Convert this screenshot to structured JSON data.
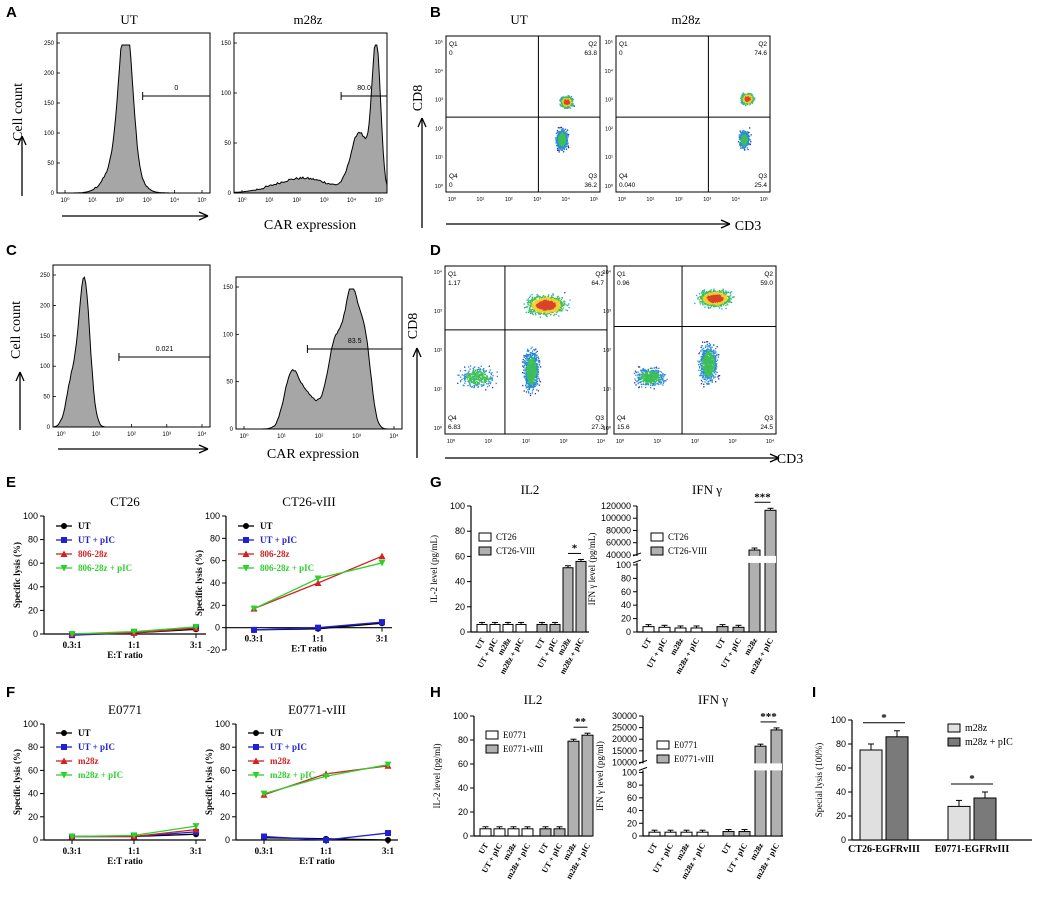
{
  "panels": {
    "A": {
      "letter": "A",
      "ylabel": "Cell count",
      "xlabel": "CAR expression",
      "plots": [
        {
          "title": "UT",
          "gate": "0",
          "yticks": [
            "0",
            "50",
            "100",
            "150",
            "200",
            "250"
          ],
          "xticks": [
            "10⁰",
            "10¹",
            "10²",
            "10³",
            "10⁴",
            "10⁵"
          ]
        },
        {
          "title": "m28z",
          "gate": "80.0",
          "yticks": [
            "0",
            "50",
            "100",
            "150"
          ],
          "xticks": [
            "10⁰",
            "10¹",
            "10²",
            "10³",
            "10⁴",
            "10⁵"
          ]
        }
      ]
    },
    "B": {
      "letter": "B",
      "ylabel": "CD8",
      "xlabel": "CD3",
      "plots": [
        {
          "title": "UT",
          "q1": "Q1",
          "q1v": "0",
          "q2": "Q2",
          "q2v": "63.8",
          "q3": "Q3",
          "q3v": "36.2",
          "q4": "Q4",
          "q4v": "0"
        },
        {
          "title": "m28z",
          "q1": "Q1",
          "q1v": "0",
          "q2": "Q2",
          "q2v": "74.6",
          "q3": "Q3",
          "q3v": "25.4",
          "q4": "Q4",
          "q4v": "0.040"
        }
      ],
      "ticks": [
        "10⁰",
        "10¹",
        "10²",
        "10³",
        "10⁴",
        "10⁵"
      ]
    },
    "C": {
      "letter": "C",
      "ylabel": "Cell count",
      "xlabel": "CAR expression",
      "plots": [
        {
          "gate": "0.021",
          "yticks": [
            "0",
            "50",
            "100",
            "150",
            "200",
            "250"
          ],
          "xticks": [
            "10⁰",
            "10¹",
            "10²",
            "10³",
            "10⁴"
          ]
        },
        {
          "gate": "83.5",
          "yticks": [
            "0",
            "50",
            "100",
            "150"
          ],
          "xticks": [
            "10⁰",
            "10¹",
            "10²",
            "10³",
            "10⁴"
          ]
        }
      ]
    },
    "D": {
      "letter": "D",
      "ylabel": "CD8",
      "xlabel": "CD3",
      "plots": [
        {
          "q1": "Q1",
          "q1v": "1.17",
          "q2": "Q2",
          "q2v": "64.7",
          "q3": "Q3",
          "q3v": "27.3",
          "q4": "Q4",
          "q4v": "6.83"
        },
        {
          "q1": "Q1",
          "q1v": "0.96",
          "q2": "Q2",
          "q2v": "59.0",
          "q3": "Q3",
          "q3v": "24.5",
          "q4": "Q4",
          "q4v": "15.6"
        }
      ],
      "ticks": [
        "10⁰",
        "10¹",
        "10²",
        "10³",
        "10⁴"
      ]
    },
    "E": {
      "letter": "E"
    },
    "F": {
      "letter": "F"
    },
    "G": {
      "letter": "G"
    },
    "H": {
      "letter": "H"
    },
    "I": {
      "letter": "I"
    }
  },
  "chart_data": [
    {
      "id": "E1",
      "type": "line",
      "title": "CT26",
      "xlabel": "E:T ratio",
      "ylabel": "Specific lysis (%)",
      "categories": [
        "0.3:1",
        "1:1",
        "3:1"
      ],
      "ylim": [
        0,
        100
      ],
      "yticks": [
        "0",
        "20",
        "40",
        "60",
        "80",
        "100"
      ],
      "series": [
        {
          "name": "UT",
          "color": "#000000",
          "marker": "circle",
          "values": [
            0,
            1,
            4
          ]
        },
        {
          "name": "UT + pIC",
          "color": "#1f1fd6",
          "marker": "square",
          "values": [
            -1,
            1,
            5
          ]
        },
        {
          "name": "806-28z",
          "color": "#d42020",
          "marker": "triangle",
          "values": [
            0,
            1,
            5
          ]
        },
        {
          "name": "806-28z + pIC",
          "color": "#2ed02e",
          "marker": "invtriangle",
          "values": [
            0,
            2,
            6
          ]
        }
      ]
    },
    {
      "id": "E2",
      "type": "line",
      "title": "CT26-vIII",
      "xlabel": "E:T ratio",
      "ylabel": "Specific lysis (%)",
      "categories": [
        "0.3:1",
        "1:1",
        "3:1"
      ],
      "ylim": [
        -20,
        100
      ],
      "yticks": [
        "-20",
        "0",
        "20",
        "40",
        "60",
        "80",
        "100"
      ],
      "series": [
        {
          "name": "UT",
          "color": "#000000",
          "marker": "circle",
          "values": [
            -2,
            -1,
            4
          ]
        },
        {
          "name": "UT + pIC",
          "color": "#1f1fd6",
          "marker": "square",
          "values": [
            -2,
            0,
            5
          ]
        },
        {
          "name": "806-28z",
          "color": "#d42020",
          "marker": "triangle",
          "values": [
            17,
            40,
            64
          ]
        },
        {
          "name": "806-28z + pIC",
          "color": "#2ed02e",
          "marker": "invtriangle",
          "values": [
            17,
            44,
            58
          ]
        }
      ]
    },
    {
      "id": "F1",
      "type": "line",
      "title": "E0771",
      "xlabel": "E:T ratio",
      "ylabel": "Specific lysis (%)",
      "categories": [
        "0.3:1",
        "1:1",
        "3:1"
      ],
      "ylim": [
        0,
        100
      ],
      "yticks": [
        "0",
        "20",
        "40",
        "60",
        "80",
        "100"
      ],
      "series": [
        {
          "name": "UT",
          "color": "#000000",
          "marker": "circle",
          "values": [
            3,
            3,
            5
          ]
        },
        {
          "name": "UT + pIC",
          "color": "#1f1fd6",
          "marker": "square",
          "values": [
            3,
            3,
            7
          ]
        },
        {
          "name": "m28z",
          "color": "#d42020",
          "marker": "triangle",
          "values": [
            3,
            3,
            9
          ]
        },
        {
          "name": "m28z + pIC",
          "color": "#2ed02e",
          "marker": "invtriangle",
          "values": [
            3,
            4,
            12
          ]
        }
      ]
    },
    {
      "id": "F2",
      "type": "line",
      "title": "E0771-vIII",
      "xlabel": "E:T ratio",
      "ylabel": "Specific lysis (%)",
      "categories": [
        "0.3:1",
        "1:1",
        "3:1"
      ],
      "ylim": [
        0,
        100
      ],
      "yticks": [
        "0",
        "20",
        "40",
        "60",
        "80",
        "100"
      ],
      "series": [
        {
          "name": "UT",
          "color": "#000000",
          "marker": "circle",
          "values": [
            2,
            1,
            0
          ]
        },
        {
          "name": "UT + pIC",
          "color": "#1f1fd6",
          "marker": "square",
          "values": [
            3,
            0,
            6
          ]
        },
        {
          "name": "m28z",
          "color": "#d42020",
          "marker": "triangle",
          "values": [
            39,
            57,
            64
          ]
        },
        {
          "name": "m28z + pIC",
          "color": "#2ed02e",
          "marker": "invtriangle",
          "values": [
            40,
            55,
            65
          ]
        }
      ]
    },
    {
      "id": "G1",
      "type": "bar",
      "title": "IL2",
      "ylabel": "IL-2 level (pg/mL)",
      "categories": [
        "UT",
        "UT + pIC",
        "m28z",
        "m28z + pIC"
      ],
      "legend": [
        "CT26",
        "CT26-VIII"
      ],
      "ylim": [
        0,
        100
      ],
      "yticks": [
        "0",
        "20",
        "40",
        "60",
        "80",
        "100"
      ],
      "series": [
        {
          "name": "CT26",
          "values": [
            6,
            6,
            6,
            6
          ]
        },
        {
          "name": "CT26-VIII",
          "values": [
            6,
            6,
            51,
            56
          ]
        }
      ],
      "significance": [
        {
          "label": "*",
          "between": [
            2,
            3
          ]
        }
      ]
    },
    {
      "id": "G2",
      "type": "bar",
      "title": "IFN γ",
      "ylabel": "IFN γ level (pg/mL)",
      "categories": [
        "UT",
        "UT + pIC",
        "m28z",
        "m28z + pIC"
      ],
      "legend": [
        "CT26",
        "CT26-VIII"
      ],
      "yticks_low": [
        "0",
        "20",
        "40",
        "60",
        "80",
        "100"
      ],
      "yticks_high": [
        "40000",
        "60000",
        "80000",
        "100000",
        "120000"
      ],
      "series": [
        {
          "name": "CT26",
          "values": [
            8,
            7,
            6,
            6
          ]
        },
        {
          "name": "CT26-VIII",
          "values": [
            8,
            7,
            48000,
            113000
          ]
        }
      ],
      "significance": [
        {
          "label": "***",
          "between": [
            2,
            3
          ]
        }
      ]
    },
    {
      "id": "H1",
      "type": "bar",
      "title": "IL2",
      "ylabel": "IL-2 level (pg/ml)",
      "categories": [
        "UT",
        "UT + pIC",
        "m28z",
        "m28z + pIC"
      ],
      "legend": [
        "E0771",
        "E0771-vIII"
      ],
      "ylim": [
        0,
        100
      ],
      "yticks": [
        "0",
        "20",
        "40",
        "60",
        "80",
        "100"
      ],
      "series": [
        {
          "name": "E0771",
          "values": [
            6,
            6,
            6,
            6
          ]
        },
        {
          "name": "E0771-vIII",
          "values": [
            6,
            6,
            79,
            84
          ]
        }
      ],
      "significance": [
        {
          "label": "**",
          "between": [
            2,
            3
          ]
        }
      ]
    },
    {
      "id": "H2",
      "type": "bar",
      "title": "IFN γ",
      "ylabel": "IFN γ level (pg/ml)",
      "categories": [
        "UT",
        "UT + pIC",
        "m28z",
        "m28z + pIC"
      ],
      "legend": [
        "E0771",
        "E0771-vIII"
      ],
      "yticks_low": [
        "0",
        "20",
        "40",
        "60",
        "80",
        "100"
      ],
      "yticks_high": [
        "10000",
        "15000",
        "20000",
        "25000",
        "30000"
      ],
      "series": [
        {
          "name": "E0771",
          "values": [
            6,
            6,
            6,
            6
          ]
        },
        {
          "name": "E0771-vIII",
          "values": [
            7,
            7,
            17000,
            24000
          ]
        }
      ],
      "significance": [
        {
          "label": "***",
          "between": [
            2,
            3
          ]
        }
      ]
    },
    {
      "id": "I",
      "type": "bar",
      "ylabel": "Special lysis (100%)",
      "categories": [
        "CT26-EGFRvIII",
        "E0771-EGFRvIII"
      ],
      "legend": [
        "m28z",
        "m28z + pIC"
      ],
      "ylim": [
        0,
        100
      ],
      "yticks": [
        "0",
        "20",
        "40",
        "60",
        "80",
        "100"
      ],
      "series": [
        {
          "name": "m28z",
          "values": [
            75,
            28
          ]
        },
        {
          "name": "m28z + pIC",
          "values": [
            86,
            35
          ]
        }
      ],
      "significance": [
        {
          "label": "*",
          "group": 0
        },
        {
          "label": "*",
          "group": 1
        }
      ]
    }
  ],
  "colors": {
    "hist_fill": "#a6a6a6",
    "bar_light": "#e0e0e0",
    "bar_dark": "#7a7a7a",
    "bar_white": "#ffffff",
    "bar_grey": "#b0b0b0"
  }
}
